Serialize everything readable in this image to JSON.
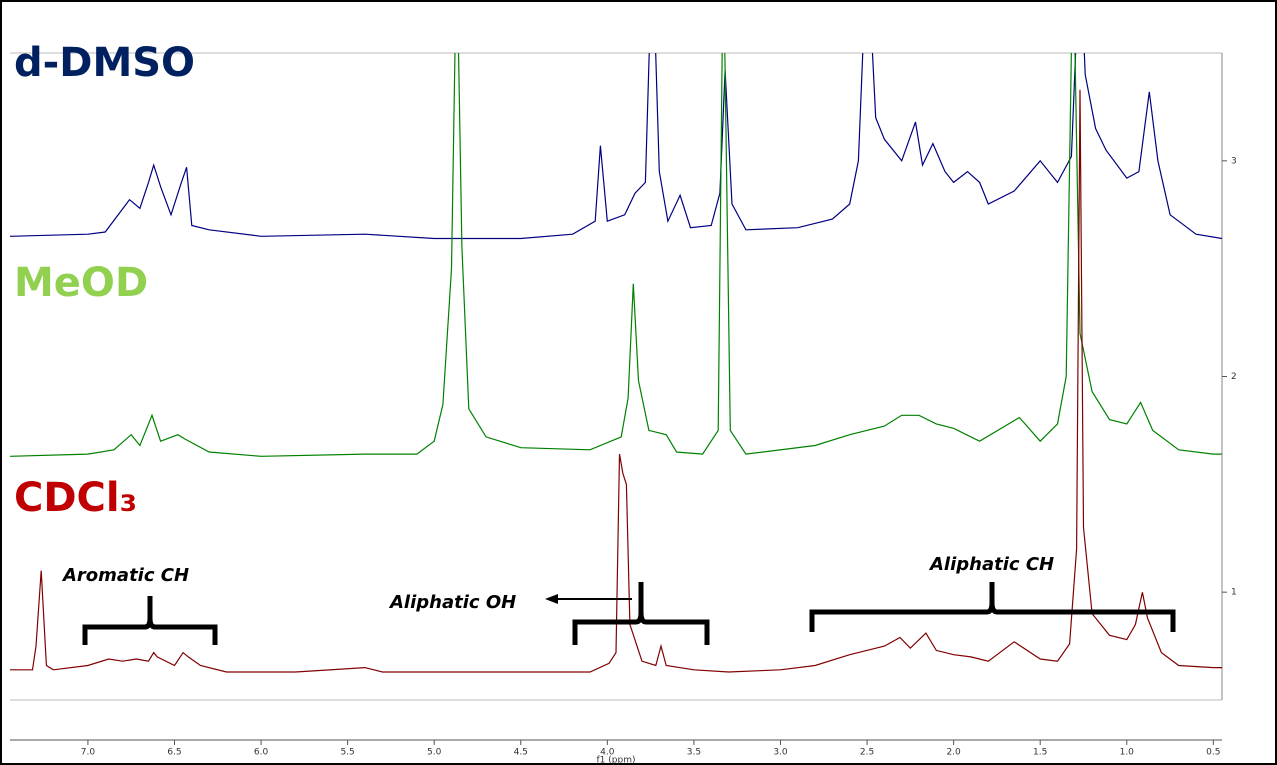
{
  "chart_data": {
    "type": "line",
    "x_label": "f1 (ppm)",
    "xlim": [
      7.45,
      0.45
    ],
    "xticks": [
      {
        "value": 7,
        "label": "7.0"
      },
      6.5,
      {
        "value": 6,
        "label": "6.0"
      },
      5.5,
      {
        "value": 5,
        "label": "5.0"
      },
      4.5,
      {
        "value": 4,
        "label": "4.0"
      },
      3.5,
      {
        "value": 3,
        "label": "3.0"
      },
      2.5,
      {
        "value": 2,
        "label": "2.0"
      },
      1.5,
      {
        "value": 1,
        "label": "1.0"
      },
      0.5
    ],
    "ylim": [
      0.5,
      3.5
    ],
    "yticks": [
      1,
      2,
      3
    ],
    "annotations": [
      "Aromatic CH",
      "Aliphatic OH",
      "Aliphatic CH"
    ],
    "series": [
      {
        "name": "d-DMSO",
        "color": "#000080",
        "label_color": "#002060",
        "x": [
          7.45,
          7.0,
          6.9,
          6.76,
          6.7,
          6.65,
          6.62,
          6.58,
          6.52,
          6.46,
          6.43,
          6.4,
          6.3,
          6.0,
          5.4,
          5.0,
          4.5,
          4.2,
          4.07,
          4.04,
          4.0,
          3.9,
          3.84,
          3.78,
          3.74,
          3.7,
          3.65,
          3.58,
          3.52,
          3.4,
          3.35,
          3.32,
          3.28,
          3.2,
          2.9,
          2.7,
          2.6,
          2.55,
          2.5,
          2.45,
          2.4,
          2.3,
          2.22,
          2.18,
          2.12,
          2.05,
          2.0,
          1.92,
          1.85,
          1.8,
          1.65,
          1.5,
          1.4,
          1.32,
          1.27,
          1.24,
          1.18,
          1.12,
          1.0,
          0.93,
          0.87,
          0.82,
          0.75,
          0.7,
          0.6,
          0.45
        ],
        "values": [
          2.65,
          2.66,
          2.67,
          2.82,
          2.78,
          2.9,
          2.98,
          2.88,
          2.75,
          2.9,
          2.97,
          2.7,
          2.68,
          2.65,
          2.66,
          2.64,
          2.64,
          2.66,
          2.72,
          3.07,
          2.72,
          2.75,
          2.85,
          2.9,
          4.0,
          2.95,
          2.72,
          2.84,
          2.69,
          2.7,
          2.85,
          3.42,
          2.8,
          2.68,
          2.69,
          2.73,
          2.8,
          3.0,
          4.0,
          3.2,
          3.1,
          3.0,
          3.18,
          2.98,
          3.08,
          2.95,
          2.9,
          2.95,
          2.9,
          2.8,
          2.86,
          3.0,
          2.9,
          3.02,
          4.0,
          3.4,
          3.15,
          3.05,
          2.92,
          2.95,
          3.32,
          3.0,
          2.75,
          2.72,
          2.66,
          2.64
        ]
      },
      {
        "name": "MeOD",
        "color": "#008000",
        "label_color": "#92d050",
        "x": [
          7.45,
          7.0,
          6.85,
          6.75,
          6.7,
          6.63,
          6.58,
          6.48,
          6.44,
          6.3,
          6.0,
          5.4,
          5.1,
          5.0,
          4.95,
          4.9,
          4.87,
          4.84,
          4.8,
          4.7,
          4.5,
          4.1,
          3.92,
          3.88,
          3.85,
          3.82,
          3.76,
          3.66,
          3.6,
          3.45,
          3.36,
          3.33,
          3.29,
          3.2,
          2.8,
          2.6,
          2.4,
          2.3,
          2.2,
          2.1,
          2.0,
          1.85,
          1.62,
          1.5,
          1.4,
          1.35,
          1.31,
          1.27,
          1.2,
          1.1,
          1.0,
          0.92,
          0.85,
          0.7,
          0.5,
          0.45
        ],
        "values": [
          1.63,
          1.64,
          1.66,
          1.73,
          1.68,
          1.82,
          1.7,
          1.73,
          1.71,
          1.65,
          1.63,
          1.64,
          1.64,
          1.7,
          1.87,
          2.5,
          4.0,
          2.6,
          1.85,
          1.72,
          1.67,
          1.66,
          1.72,
          1.9,
          2.43,
          1.98,
          1.75,
          1.73,
          1.65,
          1.64,
          1.75,
          4.0,
          1.75,
          1.64,
          1.68,
          1.73,
          1.77,
          1.82,
          1.82,
          1.78,
          1.76,
          1.7,
          1.81,
          1.7,
          1.78,
          2.0,
          4.0,
          2.2,
          1.93,
          1.8,
          1.78,
          1.88,
          1.75,
          1.66,
          1.64,
          1.64
        ]
      },
      {
        "name": "CDCl₃",
        "color": "#800000",
        "label_color": "#c00000",
        "x": [
          7.45,
          7.32,
          7.3,
          7.27,
          7.24,
          7.2,
          7.0,
          6.88,
          6.8,
          6.72,
          6.65,
          6.62,
          6.6,
          6.5,
          6.45,
          6.42,
          6.35,
          6.2,
          5.8,
          5.4,
          5.3,
          4.5,
          4.1,
          3.99,
          3.95,
          3.93,
          3.91,
          3.89,
          3.87,
          3.8,
          3.72,
          3.69,
          3.66,
          3.5,
          3.3,
          3.0,
          2.8,
          2.6,
          2.4,
          2.31,
          2.25,
          2.16,
          2.1,
          2.0,
          1.9,
          1.8,
          1.65,
          1.5,
          1.4,
          1.33,
          1.29,
          1.27,
          1.25,
          1.2,
          1.1,
          1.0,
          0.95,
          0.91,
          0.88,
          0.8,
          0.7,
          0.5,
          0.45
        ],
        "values": [
          0.64,
          0.64,
          0.75,
          1.1,
          0.66,
          0.64,
          0.66,
          0.69,
          0.68,
          0.69,
          0.68,
          0.72,
          0.7,
          0.66,
          0.72,
          0.7,
          0.66,
          0.63,
          0.63,
          0.65,
          0.63,
          0.63,
          0.63,
          0.67,
          0.72,
          1.64,
          1.55,
          1.5,
          0.85,
          0.68,
          0.66,
          0.75,
          0.66,
          0.64,
          0.63,
          0.64,
          0.66,
          0.71,
          0.75,
          0.79,
          0.74,
          0.81,
          0.73,
          0.71,
          0.7,
          0.68,
          0.77,
          0.69,
          0.68,
          0.76,
          1.2,
          3.33,
          1.3,
          0.9,
          0.8,
          0.78,
          0.85,
          1.0,
          0.88,
          0.72,
          0.66,
          0.65,
          0.65
        ]
      }
    ]
  }
}
